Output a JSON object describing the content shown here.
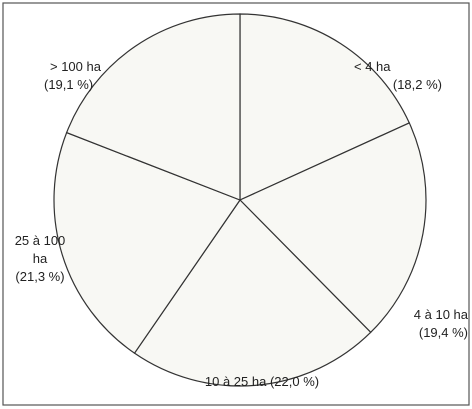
{
  "chart_data": {
    "type": "pie",
    "categories": [
      "< 4 ha",
      "4 à 10 ha",
      "10 à 25 ha",
      "25 à 100 ha",
      "> 100 ha"
    ],
    "values": [
      18.2,
      19.4,
      22.0,
      21.3,
      19.1
    ],
    "value_labels": [
      "(18,2 %)",
      "(19,4 %)",
      "(22,0 %)",
      "(21,3 %)",
      "(19,1 %)"
    ],
    "color": "#f8f8f4"
  }
}
